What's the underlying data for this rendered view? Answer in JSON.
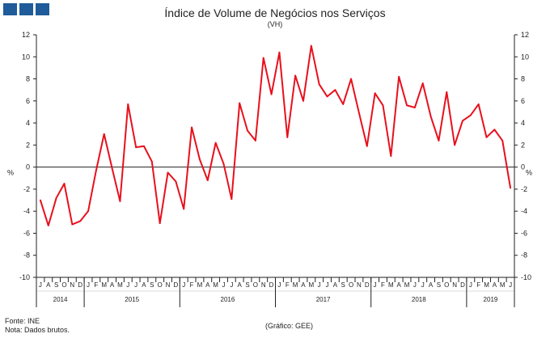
{
  "logo": {
    "blocks": 3,
    "color": "#1f5c99"
  },
  "header": {
    "title": "Índice de Volume de Negócios nos Serviços",
    "subtitle": "(VH)"
  },
  "footer": {
    "source": "Fonte: INE",
    "note": "Nota: Dados brutos.",
    "credit": "(Gráfico: GEE)"
  },
  "chart_data": {
    "type": "line",
    "title": "Índice de Volume de Negócios nos Serviços",
    "subtitle": "(VH)",
    "ylabel": "%",
    "ylim": [
      -10,
      12
    ],
    "yticks": [
      -10,
      -8,
      -6,
      -4,
      -2,
      0,
      2,
      4,
      6,
      8,
      10,
      12
    ],
    "line_color": "#e8101c",
    "month_labels": [
      "J",
      "A",
      "S",
      "O",
      "N",
      "D",
      "J",
      "F",
      "M",
      "A",
      "M",
      "J",
      "J",
      "A",
      "S",
      "O",
      "N",
      "D",
      "J",
      "F",
      "M",
      "A",
      "M",
      "J",
      "J",
      "A",
      "S",
      "O",
      "N",
      "D",
      "J",
      "F",
      "M",
      "A",
      "M",
      "J",
      "J",
      "A",
      "S",
      "O",
      "N",
      "D",
      "J",
      "F",
      "M",
      "A",
      "M",
      "J",
      "J",
      "A",
      "S",
      "O",
      "N",
      "D",
      "J",
      "F",
      "M",
      "A",
      "M",
      "J"
    ],
    "years": [
      {
        "label": "2014",
        "start": 0,
        "end": 5
      },
      {
        "label": "2015",
        "start": 6,
        "end": 17
      },
      {
        "label": "2016",
        "start": 18,
        "end": 29
      },
      {
        "label": "2017",
        "start": 30,
        "end": 41
      },
      {
        "label": "2018",
        "start": 42,
        "end": 53
      },
      {
        "label": "2019",
        "start": 54,
        "end": 59
      }
    ],
    "series": [
      {
        "values": [
          -3.0,
          -5.3,
          -2.8,
          -1.5,
          -5.2,
          -4.9,
          -4.0,
          -0.3,
          3.0,
          -0.1,
          -3.1,
          5.7,
          1.8,
          1.9,
          0.5,
          -5.1,
          -0.5,
          -1.3,
          -3.8,
          3.6,
          0.7,
          -1.2,
          2.2,
          0.3,
          -2.9,
          5.8,
          3.3,
          2.4,
          9.9,
          6.6,
          10.4,
          2.7,
          8.3,
          6.0,
          11.0,
          7.5,
          6.4,
          7.0,
          5.7,
          8.0,
          4.9,
          1.9,
          6.7,
          5.6,
          1.0,
          8.2,
          5.6,
          5.4,
          7.6,
          4.6,
          2.4,
          6.8,
          2.0,
          4.2,
          4.7,
          5.7,
          2.7,
          3.4,
          2.4,
          -1.9
        ]
      }
    ]
  }
}
